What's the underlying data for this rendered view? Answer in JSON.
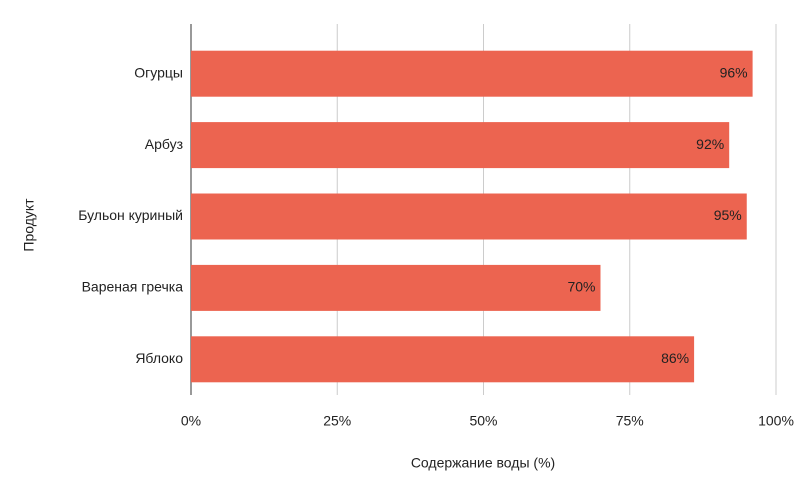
{
  "chart_data": {
    "type": "bar",
    "orientation": "horizontal",
    "x_label": "Содержание воды (%)",
    "y_label": "Продукт",
    "categories": [
      "Огурцы",
      "Арбуз",
      "Бульон куриный",
      "Вареная гречка",
      "Яблоко"
    ],
    "values": [
      96,
      92,
      95,
      70,
      86
    ],
    "value_labels": [
      "96%",
      "92%",
      "95%",
      "70%",
      "86%"
    ],
    "color": "#ec6450",
    "xlim": [
      0,
      100
    ],
    "xticks": [
      {
        "value": 0,
        "label": "0%"
      },
      {
        "value": 25,
        "label": "25%"
      },
      {
        "value": 50,
        "label": "50%"
      },
      {
        "value": 75,
        "label": "75%"
      },
      {
        "value": 100,
        "label": "100%"
      }
    ],
    "grid": true
  }
}
